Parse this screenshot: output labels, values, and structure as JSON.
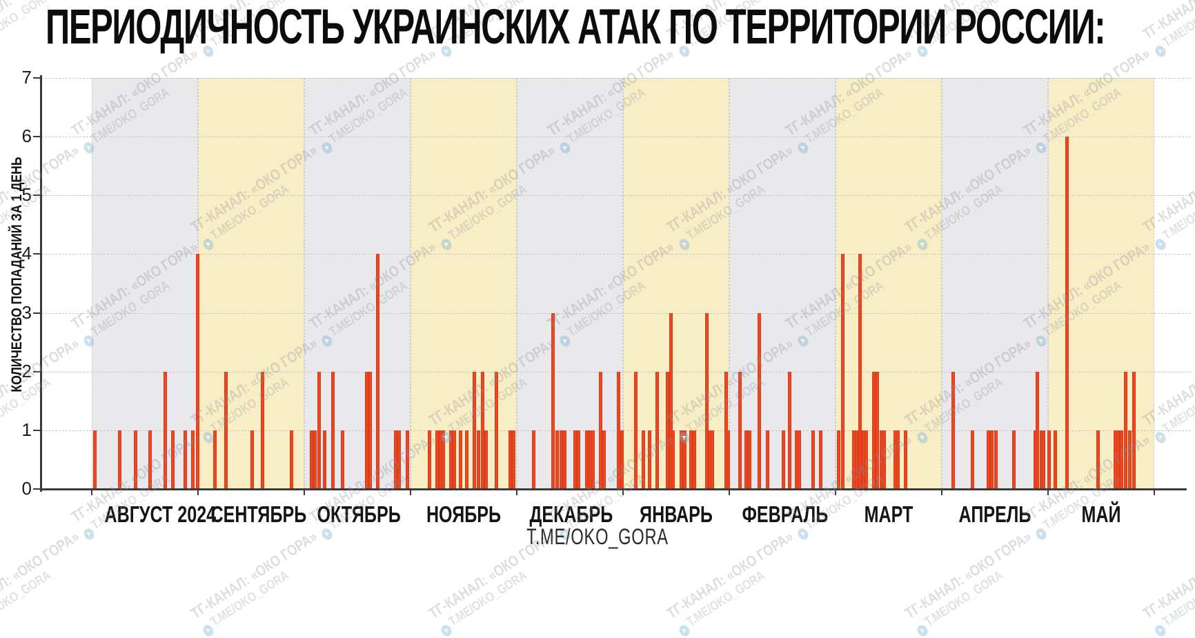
{
  "title": "ПЕРИОДИЧНОСТЬ УКРАИНСКИХ АТАК ПО ТЕРРИТОРИИ РОССИИ:",
  "caption": "T.ME/OKO_GORA",
  "watermark": {
    "line1": "ТГ-КАНАЛ: «ОКО ГОРА»",
    "line2": "T.ME/OKO_GORA",
    "icon": "telegram-icon"
  },
  "colors": {
    "bar_center": "#f1471d",
    "bar_edge": "#c23722",
    "band_gray": "#e9e9ec",
    "band_yellow": "#f7eec5",
    "grid": "#c6c6c6",
    "axis": "#3a3a3a",
    "title_text": "#0c0c0c"
  },
  "chart_data": {
    "type": "bar",
    "title": "ПЕРИОДИЧНОСТЬ УКРАИНСКИХ АТАК ПО ТЕРРИТОРИИ РОССИИ:",
    "xlabel": "",
    "ylabel": "КОЛИЧЕСТВО ПОПАДАНИЙ ЗА 1 ДЕНЬ",
    "ylim": [
      0,
      7
    ],
    "yticks": [
      0,
      1,
      2,
      3,
      4,
      5,
      6,
      7
    ],
    "grid": "horizontal-dashed",
    "legend_position": "none",
    "series_note": "each thin bar = one day; value = hits that day; months shaded alternately gray/yellow",
    "months": [
      {
        "label": "АВГУСТ 2024",
        "band": "gray",
        "bars": [
          [
            0.03,
            1
          ],
          [
            0.26,
            1
          ],
          [
            0.41,
            1
          ],
          [
            0.55,
            1
          ],
          [
            0.69,
            2
          ],
          [
            0.76,
            1
          ],
          [
            0.88,
            1
          ],
          [
            0.95,
            1
          ],
          [
            0.995,
            4
          ]
        ]
      },
      {
        "label": "СЕНТЯБРЬ",
        "band": "yellow",
        "bars": [
          [
            0.16,
            1
          ],
          [
            0.26,
            2
          ],
          [
            0.51,
            1
          ],
          [
            0.61,
            2
          ],
          [
            0.88,
            1
          ]
        ]
      },
      {
        "label": "ОКТЯБРЬ",
        "band": "gray",
        "bars": [
          [
            0.07,
            1
          ],
          [
            0.1,
            1
          ],
          [
            0.14,
            2
          ],
          [
            0.19,
            1
          ],
          [
            0.27,
            2
          ],
          [
            0.36,
            1
          ],
          [
            0.59,
            2
          ],
          [
            0.62,
            2
          ],
          [
            0.69,
            4
          ],
          [
            0.86,
            1
          ],
          [
            0.89,
            1
          ],
          [
            0.97,
            1
          ]
        ]
      },
      {
        "label": "НОЯБРЬ",
        "band": "yellow",
        "bars": [
          [
            0.18,
            1
          ],
          [
            0.25,
            1
          ],
          [
            0.28,
            1
          ],
          [
            0.31,
            1
          ],
          [
            0.38,
            1
          ],
          [
            0.41,
            1
          ],
          [
            0.47,
            1
          ],
          [
            0.53,
            1
          ],
          [
            0.6,
            2
          ],
          [
            0.64,
            1
          ],
          [
            0.68,
            2
          ],
          [
            0.71,
            1
          ],
          [
            0.81,
            2
          ],
          [
            0.94,
            1
          ],
          [
            0.97,
            1
          ]
        ]
      },
      {
        "label": "ДЕКАБРЬ",
        "band": "gray",
        "bars": [
          [
            0.16,
            1
          ],
          [
            0.34,
            3
          ],
          [
            0.38,
            1
          ],
          [
            0.42,
            1
          ],
          [
            0.45,
            1
          ],
          [
            0.55,
            1
          ],
          [
            0.58,
            1
          ],
          [
            0.66,
            1
          ],
          [
            0.69,
            1
          ],
          [
            0.72,
            1
          ],
          [
            0.79,
            2
          ],
          [
            0.82,
            1
          ],
          [
            0.96,
            2
          ],
          [
            0.99,
            1
          ]
        ]
      },
      {
        "label": "ЯНВАРЬ",
        "band": "yellow",
        "bars": [
          [
            0.12,
            2
          ],
          [
            0.19,
            1
          ],
          [
            0.25,
            1
          ],
          [
            0.32,
            2
          ],
          [
            0.42,
            2
          ],
          [
            0.45,
            3
          ],
          [
            0.47,
            1
          ],
          [
            0.55,
            1
          ],
          [
            0.58,
            1
          ],
          [
            0.64,
            1
          ],
          [
            0.67,
            1
          ],
          [
            0.79,
            3
          ],
          [
            0.82,
            1
          ],
          [
            0.84,
            1
          ],
          [
            0.97,
            2
          ],
          [
            0.99,
            1
          ]
        ]
      },
      {
        "label": "ФЕВРАЛЬ",
        "band": "gray",
        "bars": [
          [
            0.1,
            2
          ],
          [
            0.16,
            1
          ],
          [
            0.19,
            1
          ],
          [
            0.28,
            3
          ],
          [
            0.36,
            1
          ],
          [
            0.51,
            1
          ],
          [
            0.57,
            2
          ],
          [
            0.63,
            1
          ],
          [
            0.66,
            1
          ],
          [
            0.79,
            1
          ],
          [
            0.86,
            1
          ]
        ]
      },
      {
        "label": "МАРТ",
        "band": "yellow",
        "bars": [
          [
            0.03,
            1
          ],
          [
            0.07,
            4
          ],
          [
            0.17,
            1
          ],
          [
            0.2,
            1
          ],
          [
            0.23,
            4
          ],
          [
            0.26,
            1
          ],
          [
            0.29,
            1
          ],
          [
            0.36,
            2
          ],
          [
            0.39,
            2
          ],
          [
            0.43,
            1
          ],
          [
            0.46,
            1
          ],
          [
            0.56,
            1
          ],
          [
            0.59,
            1
          ],
          [
            0.66,
            1
          ]
        ]
      },
      {
        "label": "АПРЕЛЬ",
        "band": "gray",
        "bars": [
          [
            0.11,
            2
          ],
          [
            0.29,
            1
          ],
          [
            0.44,
            1
          ],
          [
            0.47,
            1
          ],
          [
            0.51,
            1
          ],
          [
            0.68,
            1
          ],
          [
            0.88,
            1
          ],
          [
            0.9,
            2
          ],
          [
            0.94,
            1
          ],
          [
            0.96,
            1
          ]
        ]
      },
      {
        "label": "МАЙ",
        "band": "yellow",
        "bars": [
          [
            0.01,
            1
          ],
          [
            0.07,
            1
          ],
          [
            0.18,
            6
          ],
          [
            0.47,
            1
          ],
          [
            0.63,
            1
          ],
          [
            0.66,
            1
          ],
          [
            0.69,
            1
          ],
          [
            0.73,
            2
          ],
          [
            0.77,
            1
          ],
          [
            0.81,
            2
          ]
        ]
      }
    ]
  }
}
